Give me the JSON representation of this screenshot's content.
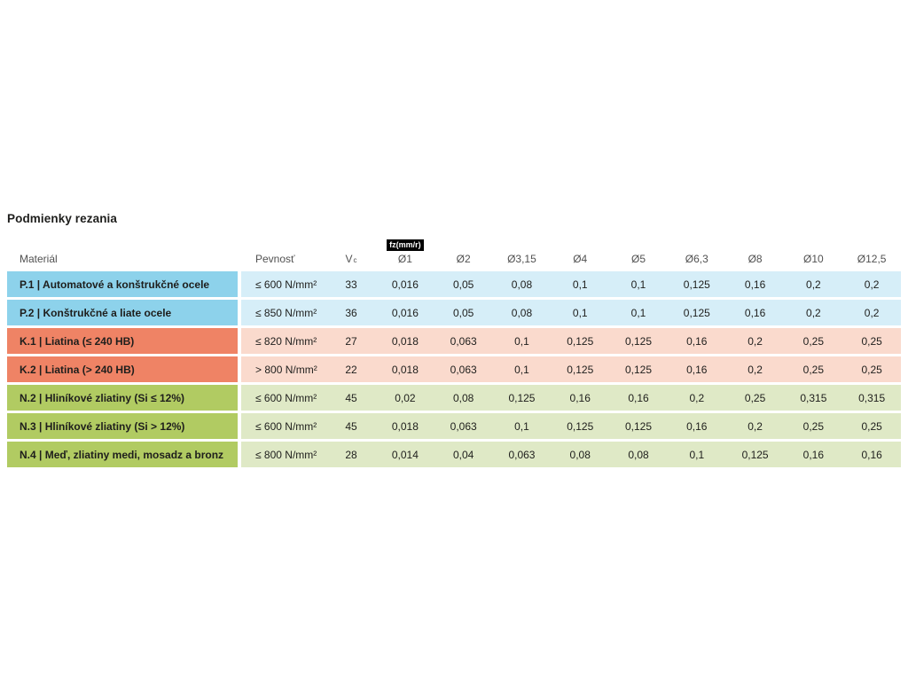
{
  "title": "Podmienky rezania",
  "table": {
    "headers": {
      "material": "Materiál",
      "pevnost": "Pevnosť",
      "vc_main": "V",
      "vc_sub": "c",
      "fz_badge": "fz(mm/r)",
      "diameters": [
        "Ø1",
        "Ø2",
        "Ø3,15",
        "Ø4",
        "Ø5",
        "Ø6,3",
        "Ø8",
        "Ø10",
        "Ø12,5"
      ]
    },
    "rows": [
      {
        "group": "P",
        "material": "P.1 | Automatové a konštrukčné ocele",
        "pevnost": "≤ 600 N/mm²",
        "vc": "33",
        "values": [
          "0,016",
          "0,05",
          "0,08",
          "0,1",
          "0,1",
          "0,125",
          "0,16",
          "0,2",
          "0,2"
        ]
      },
      {
        "group": "P",
        "material": "P.2 | Konštrukčné a liate ocele",
        "pevnost": "≤ 850 N/mm²",
        "vc": "36",
        "values": [
          "0,016",
          "0,05",
          "0,08",
          "0,1",
          "0,1",
          "0,125",
          "0,16",
          "0,2",
          "0,2"
        ]
      },
      {
        "group": "K",
        "material": "K.1 | Liatina (≤ 240 HB)",
        "pevnost": "≤ 820 N/mm²",
        "vc": "27",
        "values": [
          "0,018",
          "0,063",
          "0,1",
          "0,125",
          "0,125",
          "0,16",
          "0,2",
          "0,25",
          "0,25"
        ]
      },
      {
        "group": "K",
        "material": "K.2 | Liatina (> 240 HB)",
        "pevnost": "> 800 N/mm²",
        "vc": "22",
        "values": [
          "0,018",
          "0,063",
          "0,1",
          "0,125",
          "0,125",
          "0,16",
          "0,2",
          "0,25",
          "0,25"
        ]
      },
      {
        "group": "N",
        "material": "N.2 | Hliníkové zliatiny (Si ≤ 12%)",
        "pevnost": "≤ 600 N/mm²",
        "vc": "45",
        "values": [
          "0,02",
          "0,08",
          "0,125",
          "0,16",
          "0,16",
          "0,2",
          "0,25",
          "0,315",
          "0,315"
        ]
      },
      {
        "group": "N",
        "material": "N.3 | Hliníkové zliatiny (Si > 12%)",
        "pevnost": "≤ 600 N/mm²",
        "vc": "45",
        "values": [
          "0,018",
          "0,063",
          "0,1",
          "0,125",
          "0,125",
          "0,16",
          "0,2",
          "0,25",
          "0,25"
        ]
      },
      {
        "group": "N",
        "material": "N.4 | Meď, zliatiny medi, mosadz a bronz",
        "pevnost": "≤ 800 N/mm²",
        "vc": "28",
        "values": [
          "0,014",
          "0,04",
          "0,063",
          "0,08",
          "0,08",
          "0,1",
          "0,125",
          "0,16",
          "0,16"
        ]
      }
    ]
  },
  "colors": {
    "p_strong": "#8dd2eb",
    "p_light": "#d6eef8",
    "k_strong": "#ef8365",
    "k_light": "#fadacd",
    "n_strong": "#b1cb62",
    "n_light": "#dfe9c6",
    "badge_bg": "#000000",
    "badge_text": "#ffffff",
    "header_text": "#515151",
    "body_text": "#1e1e1c"
  }
}
